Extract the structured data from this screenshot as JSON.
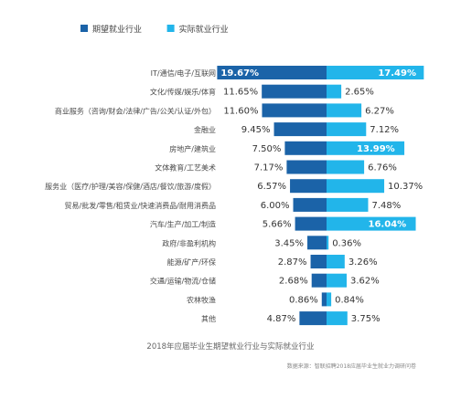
{
  "chart_data": {
    "type": "bar",
    "orientation": "horizontal-diverging",
    "title": "2018年应届毕业生期望就业行业与实际就业行业",
    "source": "数据来源：智联招聘2018应届毕业生就业力调研问卷",
    "legend": {
      "placement": "top-left",
      "entries": [
        "期望就业行业",
        "实际就业行业"
      ]
    },
    "colors": {
      "expected": "#1b63a8",
      "actual": "#22b5ea"
    },
    "categories": [
      "IT/通信/电子/互联网",
      "文化/传媒/娱乐/体育",
      "商业服务（咨询/财会/法律/广告/公关/认证/外包）",
      "金融业",
      "房地产/建筑业",
      "文体教育/工艺美术",
      "服务业（医疗/护理/美容/保健/酒店/餐饮/旅游/度假）",
      "贸易/批发/零售/租赁业/快速消费品/耐用消费品",
      "汽车/生产/加工/制造",
      "政府/非盈利机构",
      "能源/矿产/环保",
      "交通/运输/物流/仓储",
      "农林牧渔",
      "其他"
    ],
    "series": [
      {
        "name": "期望就业行业",
        "values": [
          19.67,
          11.65,
          11.6,
          9.45,
          7.5,
          7.17,
          6.57,
          6.0,
          5.66,
          3.45,
          2.87,
          2.68,
          0.86,
          4.87
        ],
        "labels": [
          "19.67%",
          "11.65%",
          "11.60%",
          "9.45%",
          "7.50%",
          "7.17%",
          "6.57%",
          "6.00%",
          "5.66%",
          "3.45%",
          "2.87%",
          "2.68%",
          "0.86%",
          "4.87%"
        ]
      },
      {
        "name": "实际就业行业",
        "values": [
          17.49,
          2.65,
          6.27,
          7.12,
          13.99,
          6.76,
          10.37,
          7.48,
          16.04,
          0.36,
          3.26,
          3.62,
          0.84,
          3.75
        ],
        "labels": [
          "17.49%",
          "2.65%",
          "6.27%",
          "7.12%",
          "13.99%",
          "6.76%",
          "10.37%",
          "7.48%",
          "16.04%",
          "0.36%",
          "3.26%",
          "3.62%",
          "0.84%",
          "3.75%"
        ]
      }
    ],
    "xlim": [
      -20,
      20
    ],
    "grid": false
  }
}
